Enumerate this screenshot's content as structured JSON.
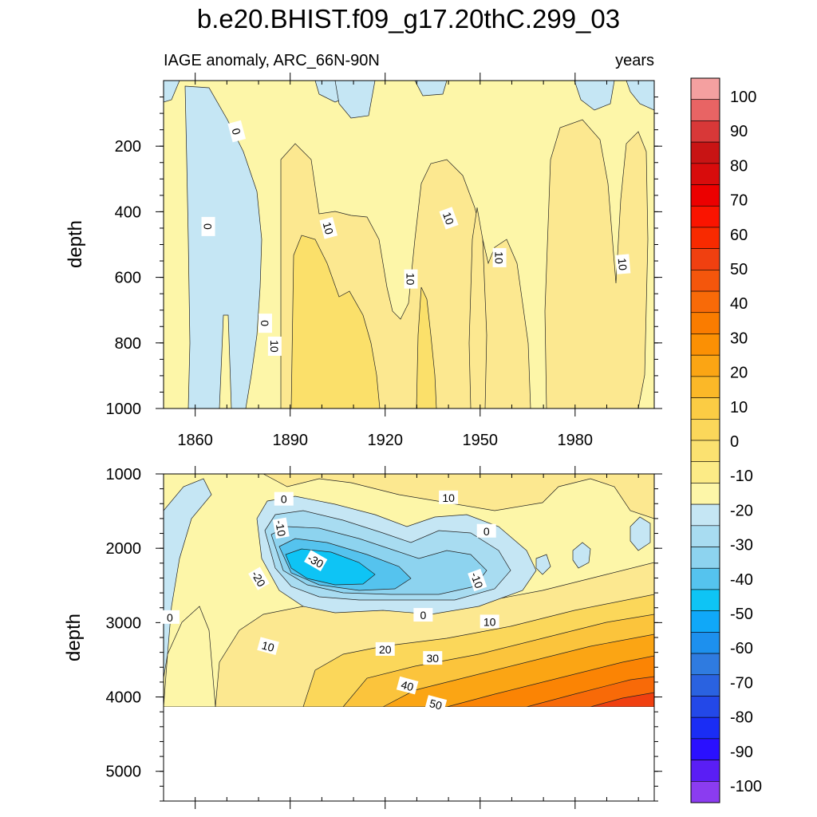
{
  "title": "b.e20.BHIST.f09_g17.20thC.299_03",
  "subtitle_left": "IAGE anomaly, ARC_66N-90N",
  "subtitle_right": "years",
  "colorbar_levels": [
    -100,
    -90,
    -80,
    -70,
    -60,
    -50,
    -40,
    -30,
    -20,
    -10,
    0,
    10,
    20,
    30,
    40,
    50,
    60,
    70,
    80,
    90,
    100
  ],
  "colorbar_colors": [
    "#8b3cf0",
    "#5a1ef5",
    "#2a10ff",
    "#1a2df5",
    "#2348e8",
    "#2a62e0",
    "#2f7be0",
    "#1d90ee",
    "#10a8f8",
    "#0ec4f5",
    "#55c3ee",
    "#8dd3ef",
    "#a8dcf1",
    "#c5e6f4",
    "#fdf6a8",
    "#fceb86",
    "#fbe170",
    "#fbd75a",
    "#fbcc44",
    "#fbb828",
    "#fba514",
    "#fb9004",
    "#fa7c00",
    "#f86a08",
    "#f4560c",
    "#f04010",
    "#f82a00",
    "#fa1400",
    "#ec0000",
    "#d80c0c",
    "#c81414",
    "#d83838",
    "#e86464",
    "#f4a0a0"
  ],
  "chart_data": [
    {
      "type": "heatmap",
      "panel": "upper",
      "title": "b.e20.BHIST.f09_g17.20thC.299_03",
      "variable": "IAGE anomaly, ARC_66N-90N",
      "units": "years",
      "xlabel": "",
      "ylabel": "depth",
      "xlim": [
        1850,
        2005
      ],
      "ylim": [
        1000,
        0
      ],
      "x_tick_labels": [
        "1860",
        "1890",
        "1920",
        "1950",
        "1980"
      ],
      "y_tick_labels": [
        "200",
        "400",
        "600",
        "800",
        "1000"
      ],
      "contour_labels": [
        "0",
        "0",
        "0",
        "10",
        "10",
        "10",
        "10",
        "10",
        "10",
        "10"
      ],
      "approx_values": [
        {
          "years": "1857-1874",
          "depth": "100-1000",
          "anomaly": "0 to -10"
        },
        {
          "years": "1890-1915",
          "depth": "500-1000",
          "anomaly": "10 to 20"
        },
        {
          "years": "1930-1937",
          "depth": "650-1000",
          "anomaly": "10 to 20"
        },
        {
          "years": "1850-2005",
          "depth": "0-150",
          "anomaly": "0 to 10, patches 0 to -10"
        }
      ]
    },
    {
      "type": "heatmap",
      "panel": "lower",
      "xlabel": "",
      "ylabel": "depth",
      "xlim": [
        1850,
        2005
      ],
      "ylim": [
        5400,
        1000
      ],
      "y_tick_labels": [
        "1000",
        "2000",
        "3000",
        "4000",
        "5000"
      ],
      "contour_labels": [
        "0",
        "0",
        "0",
        "0",
        "-10",
        "-10",
        "-20",
        "-30",
        "10",
        "10",
        "10",
        "20",
        "30",
        "40",
        "50"
      ],
      "data_bottom_depth": 4100,
      "approx_values": [
        {
          "years": "1880-1960",
          "depth": "1500-2900",
          "anomaly": "0 to -30, minimum near 1895, 2200 m"
        },
        {
          "years": "1920-2005",
          "depth": "3000-4100",
          "anomaly": "10 to 50+, increasing with time and depth"
        },
        {
          "years": "1850-1860",
          "depth": "1000-3500",
          "anomaly": "0 to -10"
        }
      ]
    }
  ]
}
